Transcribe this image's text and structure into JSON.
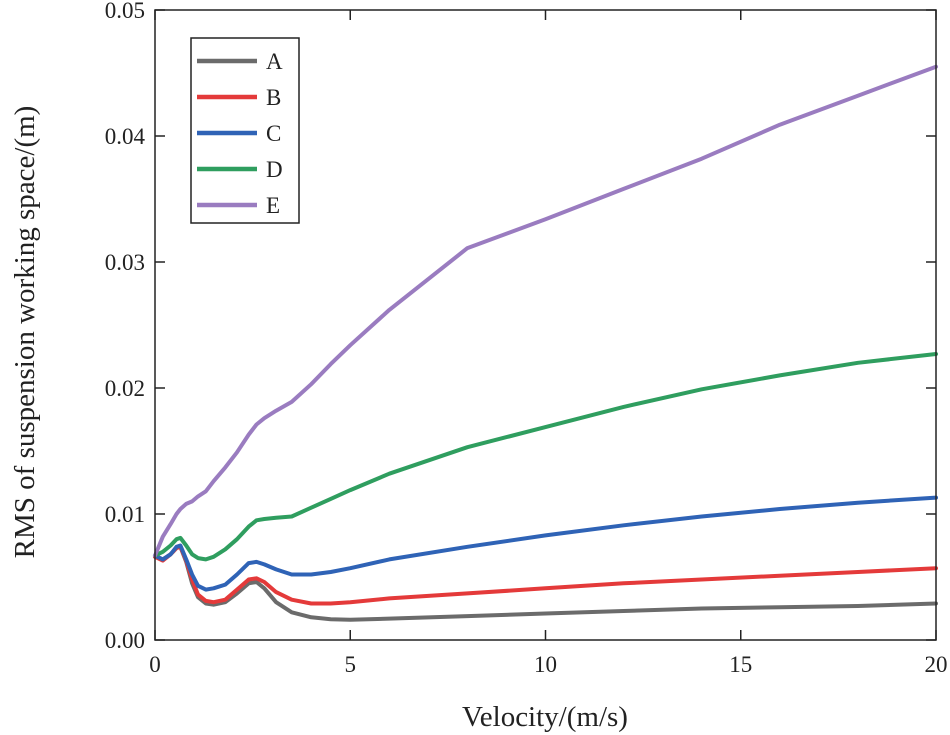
{
  "chart_data": {
    "type": "line",
    "title": "",
    "xlabel": "Velocity/(m/s)",
    "ylabel": "RMS of suspension working space/(m)",
    "xlim": [
      0,
      20
    ],
    "ylim": [
      0,
      0.05
    ],
    "x_ticks": [
      0,
      5,
      10,
      15,
      20
    ],
    "x_tick_labels": [
      "0",
      "5",
      "10",
      "15",
      "20"
    ],
    "y_ticks": [
      0,
      0.01,
      0.02,
      0.03,
      0.04,
      0.05
    ],
    "y_tick_labels": [
      "0.00",
      "0.01",
      "0.02",
      "0.03",
      "0.04",
      "0.05"
    ],
    "grid": false,
    "legend_position": "top-left",
    "series": [
      {
        "name": "A",
        "color": "#6b6b6b",
        "points": [
          [
            0,
            0.0066
          ],
          [
            0.2,
            0.0064
          ],
          [
            0.4,
            0.0068
          ],
          [
            0.55,
            0.0073
          ],
          [
            0.65,
            0.0074
          ],
          [
            0.8,
            0.0062
          ],
          [
            0.95,
            0.0045
          ],
          [
            1.1,
            0.0034
          ],
          [
            1.3,
            0.0029
          ],
          [
            1.5,
            0.0028
          ],
          [
            1.8,
            0.003
          ],
          [
            2.1,
            0.0037
          ],
          [
            2.4,
            0.0045
          ],
          [
            2.6,
            0.0046
          ],
          [
            2.8,
            0.0041
          ],
          [
            3.1,
            0.003
          ],
          [
            3.5,
            0.0022
          ],
          [
            4,
            0.0018
          ],
          [
            4.5,
            0.00165
          ],
          [
            5,
            0.0016
          ],
          [
            6,
            0.0017
          ],
          [
            8,
            0.0019
          ],
          [
            10,
            0.0021
          ],
          [
            12,
            0.0023
          ],
          [
            14,
            0.0025
          ],
          [
            16,
            0.0026
          ],
          [
            18,
            0.0027
          ],
          [
            20,
            0.0029
          ]
        ]
      },
      {
        "name": "B",
        "color": "#e43a3a",
        "points": [
          [
            0,
            0.0066
          ],
          [
            0.2,
            0.0063
          ],
          [
            0.4,
            0.0068
          ],
          [
            0.55,
            0.0073
          ],
          [
            0.65,
            0.0074
          ],
          [
            0.8,
            0.0063
          ],
          [
            0.95,
            0.0048
          ],
          [
            1.1,
            0.0036
          ],
          [
            1.3,
            0.0031
          ],
          [
            1.5,
            0.003
          ],
          [
            1.8,
            0.0032
          ],
          [
            2.1,
            0.004
          ],
          [
            2.4,
            0.0048
          ],
          [
            2.6,
            0.0049
          ],
          [
            2.8,
            0.0046
          ],
          [
            3.1,
            0.0038
          ],
          [
            3.5,
            0.0032
          ],
          [
            4,
            0.0029
          ],
          [
            4.5,
            0.0029
          ],
          [
            5,
            0.003
          ],
          [
            6,
            0.0033
          ],
          [
            8,
            0.0037
          ],
          [
            10,
            0.0041
          ],
          [
            12,
            0.0045
          ],
          [
            14,
            0.0048
          ],
          [
            16,
            0.0051
          ],
          [
            18,
            0.0054
          ],
          [
            20,
            0.0057
          ]
        ]
      },
      {
        "name": "C",
        "color": "#2f63b6",
        "points": [
          [
            0,
            0.0067
          ],
          [
            0.2,
            0.0064
          ],
          [
            0.4,
            0.0068
          ],
          [
            0.55,
            0.0074
          ],
          [
            0.65,
            0.0075
          ],
          [
            0.8,
            0.0064
          ],
          [
            0.95,
            0.0052
          ],
          [
            1.1,
            0.0043
          ],
          [
            1.3,
            0.004
          ],
          [
            1.5,
            0.0041
          ],
          [
            1.8,
            0.0044
          ],
          [
            2.1,
            0.0052
          ],
          [
            2.4,
            0.0061
          ],
          [
            2.6,
            0.0062
          ],
          [
            2.8,
            0.006
          ],
          [
            3.1,
            0.0056
          ],
          [
            3.5,
            0.0052
          ],
          [
            4,
            0.0052
          ],
          [
            4.5,
            0.0054
          ],
          [
            5,
            0.0057
          ],
          [
            6,
            0.0064
          ],
          [
            8,
            0.0074
          ],
          [
            10,
            0.0083
          ],
          [
            12,
            0.0091
          ],
          [
            14,
            0.0098
          ],
          [
            16,
            0.0104
          ],
          [
            18,
            0.0109
          ],
          [
            20,
            0.0113
          ]
        ]
      },
      {
        "name": "D",
        "color": "#2f9e5f",
        "points": [
          [
            0,
            0.0067
          ],
          [
            0.2,
            0.007
          ],
          [
            0.4,
            0.0075
          ],
          [
            0.55,
            0.008
          ],
          [
            0.65,
            0.0081
          ],
          [
            0.8,
            0.0075
          ],
          [
            0.95,
            0.0068
          ],
          [
            1.1,
            0.0065
          ],
          [
            1.3,
            0.0064
          ],
          [
            1.5,
            0.0066
          ],
          [
            1.8,
            0.0072
          ],
          [
            2.1,
            0.008
          ],
          [
            2.4,
            0.009
          ],
          [
            2.6,
            0.0095
          ],
          [
            2.8,
            0.0096
          ],
          [
            3.1,
            0.0097
          ],
          [
            3.5,
            0.0098
          ],
          [
            4,
            0.0105
          ],
          [
            4.5,
            0.0112
          ],
          [
            5,
            0.0119
          ],
          [
            6,
            0.0132
          ],
          [
            8,
            0.0153
          ],
          [
            10,
            0.0169
          ],
          [
            12,
            0.0185
          ],
          [
            14,
            0.0199
          ],
          [
            16,
            0.021
          ],
          [
            18,
            0.022
          ],
          [
            20,
            0.0227
          ]
        ]
      },
      {
        "name": "E",
        "color": "#9a7cc0",
        "points": [
          [
            0,
            0.0067
          ],
          [
            0.2,
            0.0082
          ],
          [
            0.4,
            0.0092
          ],
          [
            0.55,
            0.01
          ],
          [
            0.65,
            0.0104
          ],
          [
            0.8,
            0.0108
          ],
          [
            0.95,
            0.011
          ],
          [
            1.1,
            0.0114
          ],
          [
            1.3,
            0.0118
          ],
          [
            1.5,
            0.0126
          ],
          [
            1.8,
            0.0137
          ],
          [
            2.1,
            0.0149
          ],
          [
            2.4,
            0.0163
          ],
          [
            2.6,
            0.0171
          ],
          [
            2.8,
            0.0176
          ],
          [
            3.1,
            0.0182
          ],
          [
            3.5,
            0.0189
          ],
          [
            4,
            0.0203
          ],
          [
            4.5,
            0.0219
          ],
          [
            5,
            0.0234
          ],
          [
            6,
            0.0262
          ],
          [
            8,
            0.0311
          ],
          [
            10,
            0.0334
          ],
          [
            12,
            0.0358
          ],
          [
            14,
            0.0382
          ],
          [
            16,
            0.0409
          ],
          [
            18,
            0.0432
          ],
          [
            20,
            0.0455
          ]
        ]
      }
    ]
  }
}
